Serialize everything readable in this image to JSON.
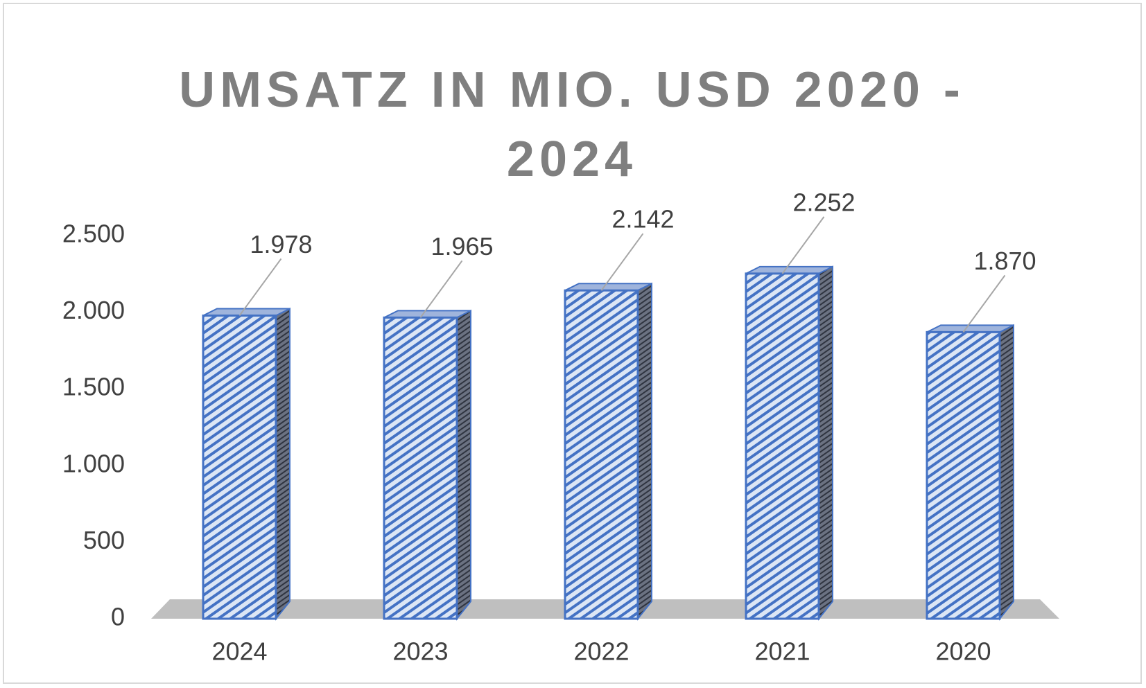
{
  "chart_data": {
    "type": "bar",
    "title": "UMSATZ IN MIO. USD 2020 - 2024",
    "categories": [
      "2024",
      "2023",
      "2022",
      "2021",
      "2020"
    ],
    "values": [
      1978,
      1965,
      2142,
      2252,
      1870
    ],
    "value_labels": [
      "1.978",
      "1.965",
      "2.142",
      "2.252",
      "1.870"
    ],
    "color": "#4472c4",
    "ylim": [
      0,
      2500
    ],
    "yticks": [
      0,
      500,
      {
        "value": 1000,
        "label": "1.000"
      },
      {
        "value": 1500,
        "label": "1.500"
      },
      {
        "value": 2000,
        "label": "2.000"
      },
      {
        "value": 2500,
        "label": "2.500"
      }
    ],
    "grid": false
  }
}
